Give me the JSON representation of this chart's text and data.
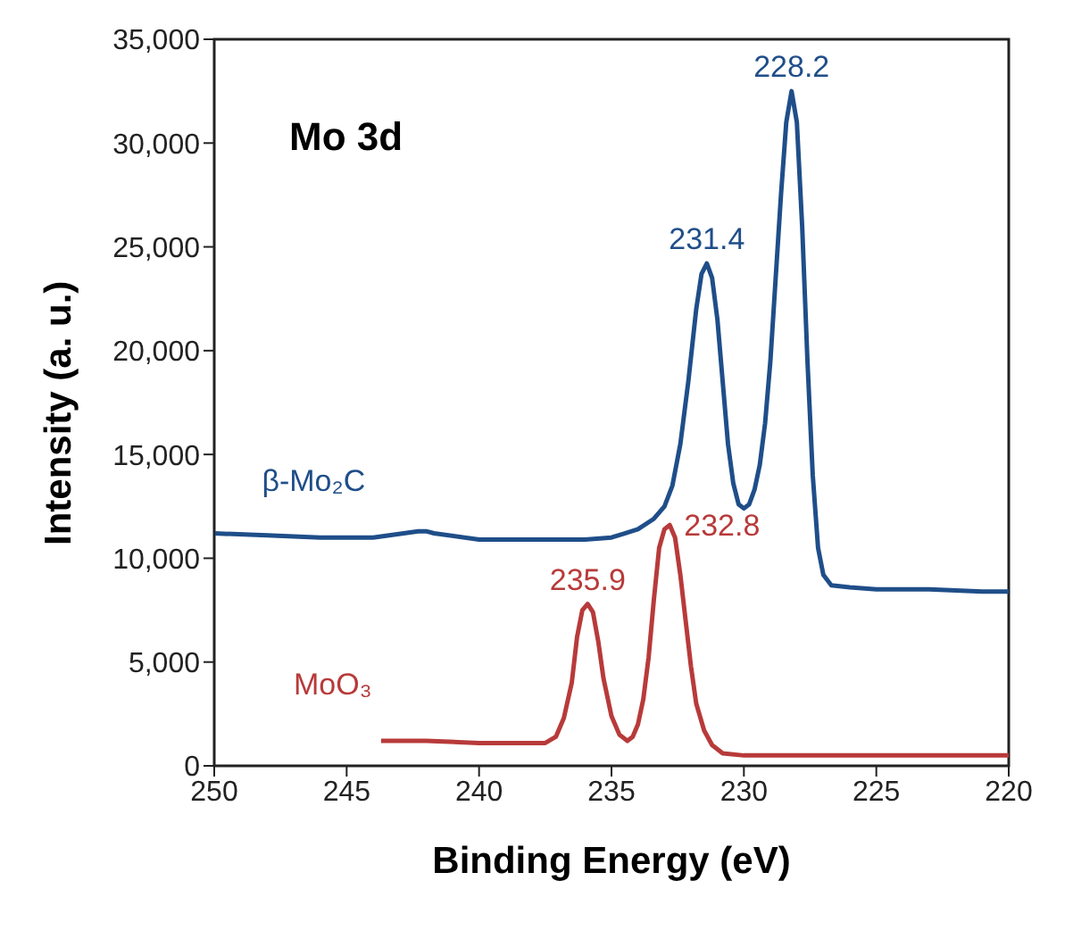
{
  "chart_data": {
    "type": "line",
    "title": "Mo 3d",
    "xlabel": "Binding Energy (eV)",
    "ylabel": "Intensity (a. u.)",
    "xlim": [
      250,
      220
    ],
    "xticks": [
      250,
      245,
      240,
      235,
      230,
      225,
      220
    ],
    "ylim": [
      0,
      35000
    ],
    "yticks": [
      {
        "value": 0,
        "label": "0"
      },
      {
        "value": 5000,
        "label": "5,000"
      },
      {
        "value": 10000,
        "label": "10,000"
      },
      {
        "value": 15000,
        "label": "15,000"
      },
      {
        "value": 20000,
        "label": "20,000"
      },
      {
        "value": 25000,
        "label": "25,000"
      },
      {
        "value": 30000,
        "label": "30,000"
      },
      {
        "value": 35000,
        "label": "35,000"
      }
    ],
    "marker": "none",
    "line_style": "solid",
    "series": [
      {
        "name": "β-Mo₂C",
        "color": "#1f4e89",
        "x": [
          250,
          248,
          246,
          244,
          242.3,
          242,
          241.7,
          240,
          238,
          236,
          235,
          234.5,
          234,
          233.4,
          233,
          232.7,
          232.4,
          232.1,
          231.8,
          231.6,
          231.4,
          231.2,
          231,
          230.8,
          230.6,
          230.4,
          230.2,
          230,
          229.8,
          229.6,
          229.4,
          229.2,
          229,
          228.8,
          228.6,
          228.4,
          228.2,
          228,
          227.8,
          227.6,
          227.4,
          227.2,
          227,
          226.7,
          226,
          225,
          223,
          221,
          220
        ],
        "values": [
          11200,
          11100,
          11000,
          11000,
          11300,
          11300,
          11200,
          10900,
          10900,
          10900,
          11000,
          11200,
          11400,
          11900,
          12500,
          13500,
          15500,
          18500,
          22000,
          23700,
          24200,
          23500,
          21500,
          18500,
          15500,
          13600,
          12600,
          12400,
          12600,
          13300,
          14500,
          16500,
          19500,
          23500,
          27500,
          31000,
          32500,
          31000,
          26000,
          19500,
          14000,
          10500,
          9200,
          8700,
          8600,
          8500,
          8500,
          8400,
          8400
        ]
      },
      {
        "name": "MoO₃",
        "color": "#b83a3a",
        "x": [
          243.7,
          242,
          240,
          238.5,
          237.5,
          237.1,
          236.8,
          236.5,
          236.3,
          236.1,
          235.9,
          235.7,
          235.5,
          235.3,
          235,
          234.7,
          234.4,
          234.2,
          234,
          233.8,
          233.6,
          233.4,
          233.2,
          233,
          232.8,
          232.6,
          232.4,
          232.2,
          232,
          231.8,
          231.5,
          231.2,
          230.8,
          230,
          228,
          226,
          224,
          222,
          220
        ],
        "values": [
          1200,
          1200,
          1100,
          1100,
          1100,
          1400,
          2300,
          4000,
          6200,
          7500,
          7800,
          7400,
          6000,
          4200,
          2400,
          1500,
          1200,
          1400,
          2000,
          3200,
          5200,
          8000,
          10500,
          11400,
          11600,
          11000,
          9200,
          7000,
          4800,
          3000,
          1700,
          1000,
          600,
          500,
          500,
          500,
          500,
          500,
          500
        ]
      }
    ],
    "annotations": [
      {
        "text": "228.2",
        "x": 228.2,
        "y": 32500
      },
      {
        "text": "231.4",
        "x": 231.4,
        "y": 24200
      },
      {
        "text": "232.8",
        "x": 232.8,
        "y": 11600
      },
      {
        "text": "235.9",
        "x": 235.9,
        "y": 7800
      }
    ]
  }
}
